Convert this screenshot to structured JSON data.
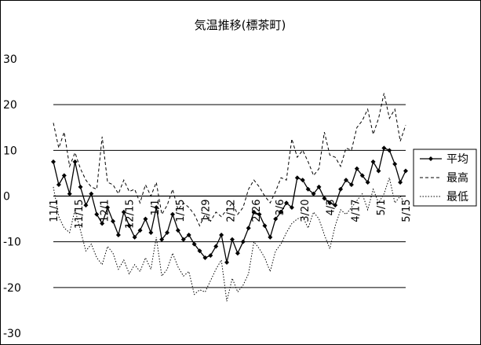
{
  "chart_data": {
    "type": "line",
    "title": "気温推移(標茶町)",
    "xlabel": "",
    "ylabel": "",
    "ylim": [
      -30,
      30
    ],
    "yticks": [
      30,
      20,
      10,
      0,
      -10,
      -20,
      -30
    ],
    "gridlines": [
      20,
      10,
      0,
      -10,
      -20
    ],
    "grid": true,
    "legend_position": "right",
    "x_start": "11/1",
    "x_end": "5/15",
    "x_tick_labels": [
      "11/1",
      "11/15",
      "12/1",
      "12/15",
      "1/1",
      "1/15",
      "1/29",
      "2/12",
      "2/26",
      "3/6",
      "3/20",
      "4/3",
      "4/17",
      "5/1",
      "5/15"
    ],
    "x_tick_dates": [
      "11/1",
      "11/15",
      "11/29",
      "12/13",
      "12/27",
      "1/10",
      "1/24",
      "2/7",
      "2/21",
      "3/6",
      "3/20",
      "4/3",
      "4/17",
      "5/1",
      "5/15"
    ],
    "x": [
      "11/1",
      "11/4",
      "11/7",
      "11/10",
      "11/13",
      "11/16",
      "11/19",
      "11/22",
      "11/25",
      "11/28",
      "12/1",
      "12/4",
      "12/7",
      "12/10",
      "12/13",
      "12/16",
      "12/19",
      "12/22",
      "12/25",
      "12/28",
      "12/31",
      "1/3",
      "1/6",
      "1/9",
      "1/12",
      "1/15",
      "1/18",
      "1/21",
      "1/24",
      "1/27",
      "1/30",
      "2/2",
      "2/5",
      "2/8",
      "2/11",
      "2/14",
      "2/17",
      "2/20",
      "2/23",
      "2/26",
      "3/1",
      "3/4",
      "3/7",
      "3/10",
      "3/13",
      "3/16",
      "3/19",
      "3/22",
      "3/25",
      "3/28",
      "3/31",
      "4/3",
      "4/6",
      "4/9",
      "4/12",
      "4/15",
      "4/18",
      "4/21",
      "4/24",
      "4/27",
      "4/30",
      "5/3",
      "5/6",
      "5/9",
      "5/12",
      "5/15"
    ],
    "series": [
      {
        "name": "平均",
        "color": "#000000",
        "style": "solid-diamond",
        "values": [
          7.5,
          2.5,
          4.5,
          0.5,
          7.5,
          2.0,
          -2.0,
          0.5,
          -4.0,
          -6.0,
          -2.5,
          -5.5,
          -8.5,
          -3.5,
          -6.5,
          -9.0,
          -7.5,
          -5.0,
          -8.0,
          -2.5,
          -9.5,
          -8.0,
          -4.0,
          -7.5,
          -9.5,
          -8.5,
          -10.5,
          -12.0,
          -13.5,
          -13.0,
          -11.0,
          -8.5,
          -14.5,
          -9.5,
          -12.5,
          -10.0,
          -7.0,
          -3.5,
          -4.0,
          -6.5,
          -9.0,
          -5.0,
          -3.5,
          -1.5,
          -2.5,
          4.0,
          3.5,
          1.5,
          0.5,
          2.0,
          -0.5,
          -1.5,
          -2.0,
          1.5,
          3.5,
          2.5,
          6.0,
          4.5,
          3.0,
          7.5,
          5.5,
          10.5,
          10.0,
          7.0,
          3.0,
          5.5
        ]
      },
      {
        "name": "最高",
        "color": "#000000",
        "style": "dashed",
        "values": [
          16.0,
          10.5,
          14.0,
          6.5,
          9.5,
          6.0,
          3.5,
          2.0,
          1.5,
          13.0,
          3.0,
          2.5,
          0.5,
          3.5,
          1.0,
          1.5,
          -1.5,
          2.5,
          0.0,
          3.0,
          -4.0,
          -2.0,
          1.5,
          -3.0,
          -1.5,
          -2.5,
          -4.0,
          -6.5,
          -4.0,
          -5.5,
          -3.5,
          -4.5,
          -3.0,
          -1.5,
          -4.0,
          -2.5,
          1.5,
          3.5,
          2.0,
          0.0,
          -1.5,
          1.0,
          4.0,
          3.5,
          12.5,
          8.5,
          10.0,
          7.5,
          4.5,
          6.0,
          14.0,
          9.0,
          8.5,
          6.5,
          10.5,
          10.0,
          15.0,
          16.5,
          19.0,
          13.5,
          17.0,
          22.5,
          17.0,
          19.0,
          12.0,
          15.5
        ]
      },
      {
        "name": "最低",
        "color": "#000000",
        "style": "dotted",
        "values": [
          2.0,
          -4.5,
          -7.0,
          -8.0,
          -3.0,
          -7.5,
          -12.0,
          -10.5,
          -13.5,
          -15.0,
          -11.0,
          -12.5,
          -16.0,
          -14.0,
          -17.0,
          -15.0,
          -16.5,
          -13.5,
          -16.0,
          -9.0,
          -17.5,
          -16.0,
          -12.5,
          -15.5,
          -17.5,
          -16.5,
          -21.5,
          -20.5,
          -21.0,
          -18.5,
          -16.0,
          -14.0,
          -23.0,
          -18.0,
          -21.0,
          -19.5,
          -17.0,
          -10.0,
          -11.5,
          -13.5,
          -16.5,
          -12.0,
          -10.5,
          -8.0,
          -6.0,
          -5.0,
          -4.5,
          -7.0,
          -3.5,
          -5.0,
          -8.5,
          -11.5,
          -6.5,
          -3.0,
          -4.0,
          -2.5,
          -1.0,
          0.5,
          -3.0,
          1.5,
          -1.5,
          0.5,
          4.0,
          -1.5,
          0.0,
          -2.0
        ]
      }
    ]
  }
}
